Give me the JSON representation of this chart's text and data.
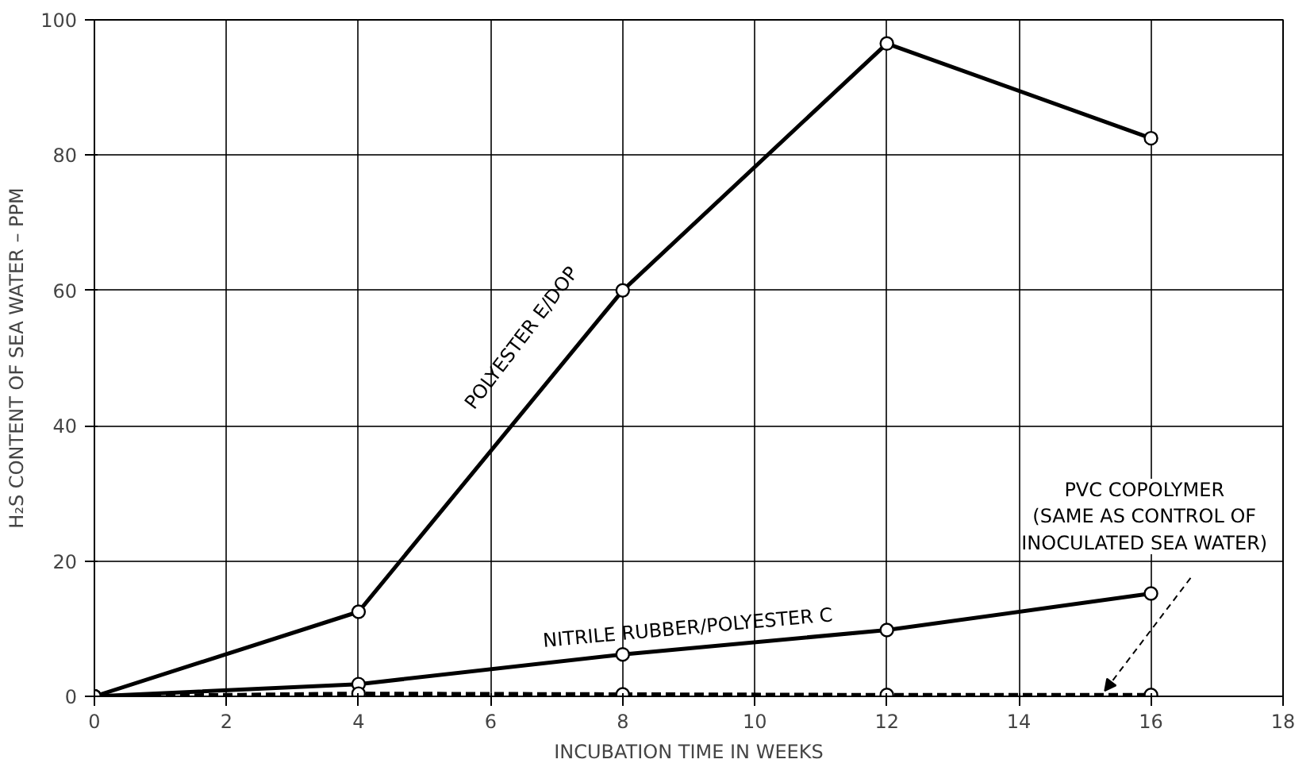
{
  "chart_data": {
    "type": "line",
    "xlabel": "INCUBATION TIME IN WEEKS",
    "ylabel": "H₂S CONTENT OF SEA WATER – PPM",
    "x": [
      0,
      4,
      8,
      12,
      16
    ],
    "series": [
      {
        "name": "POLYESTER E/DOP",
        "color": "#000000",
        "values": [
          0,
          12.5,
          60,
          96.5,
          82.5
        ]
      },
      {
        "name": "NITRILE RUBBER/POLYESTER C",
        "color": "#000000",
        "values": [
          0,
          1.8,
          6.2,
          9.8,
          15.2
        ]
      },
      {
        "name": "PVC COPOLYMER\n(SAME AS CONTROL OF\nINOCULATED SEA WATER)",
        "color": "#000000",
        "values": [
          0,
          0.4,
          0.3,
          0.2,
          0.2
        ],
        "line_style": "dashed"
      }
    ],
    "xlim": [
      0,
      18
    ],
    "ylim": [
      0,
      100
    ],
    "xticks": [
      0,
      2,
      4,
      6,
      8,
      10,
      12,
      14,
      16,
      18
    ],
    "yticks": [
      0,
      20,
      40,
      60,
      80,
      100
    ],
    "grid": true,
    "marker": "circle",
    "line_style": "solid"
  }
}
